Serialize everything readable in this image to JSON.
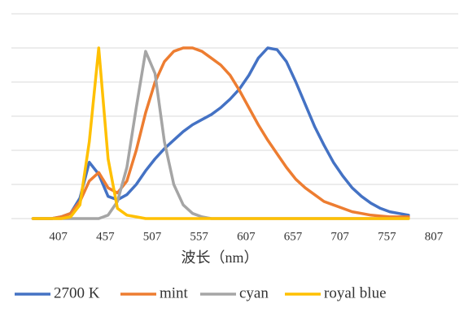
{
  "chart_data": {
    "type": "line",
    "x_label": "波长（nm）",
    "x": [
      380,
      390,
      400,
      410,
      420,
      430,
      440,
      450,
      460,
      470,
      480,
      490,
      500,
      510,
      520,
      530,
      540,
      550,
      560,
      570,
      580,
      590,
      600,
      610,
      620,
      630,
      640,
      650,
      660,
      670,
      680,
      690,
      700,
      710,
      720,
      730,
      740,
      750,
      760,
      770,
      780
    ],
    "series": [
      {
        "name": "2700 K",
        "color": "#4472c4",
        "values": [
          0,
          0,
          0,
          0.01,
          0.03,
          0.12,
          0.33,
          0.26,
          0.13,
          0.11,
          0.14,
          0.2,
          0.28,
          0.35,
          0.41,
          0.46,
          0.51,
          0.55,
          0.58,
          0.61,
          0.65,
          0.7,
          0.76,
          0.84,
          0.94,
          1.0,
          0.99,
          0.92,
          0.8,
          0.67,
          0.54,
          0.43,
          0.33,
          0.25,
          0.18,
          0.13,
          0.09,
          0.06,
          0.04,
          0.03,
          0.02
        ]
      },
      {
        "name": "mint",
        "color": "#ed7d31",
        "values": [
          0,
          0,
          0,
          0.01,
          0.03,
          0.1,
          0.22,
          0.27,
          0.18,
          0.15,
          0.22,
          0.4,
          0.62,
          0.8,
          0.92,
          0.98,
          1.0,
          1.0,
          0.98,
          0.94,
          0.9,
          0.84,
          0.75,
          0.65,
          0.55,
          0.46,
          0.38,
          0.3,
          0.23,
          0.18,
          0.14,
          0.1,
          0.08,
          0.06,
          0.04,
          0.03,
          0.02,
          0.015,
          0.01,
          0.01,
          0.01
        ]
      },
      {
        "name": "cyan",
        "color": "#a5a5a5",
        "values": [
          0,
          0,
          0,
          0,
          0,
          0,
          0,
          0,
          0.02,
          0.1,
          0.3,
          0.65,
          0.98,
          0.85,
          0.45,
          0.2,
          0.08,
          0.03,
          0.01,
          0,
          0,
          0,
          0,
          0,
          0,
          0,
          0,
          0,
          0,
          0,
          0,
          0,
          0,
          0,
          0,
          0,
          0,
          0,
          0,
          0,
          0
        ]
      },
      {
        "name": "royal blue",
        "color": "#ffc000",
        "values": [
          0,
          0,
          0,
          0,
          0.01,
          0.08,
          0.45,
          1.0,
          0.35,
          0.06,
          0.02,
          0.01,
          0,
          0,
          0,
          0,
          0,
          0,
          0,
          0,
          0,
          0,
          0,
          0,
          0,
          0,
          0,
          0,
          0,
          0,
          0,
          0,
          0,
          0,
          0,
          0,
          0,
          0,
          0,
          0,
          0
        ]
      }
    ],
    "xlim": [
      357,
      833
    ],
    "xticks": [
      407,
      457,
      507,
      557,
      607,
      657,
      707,
      757,
      807
    ],
    "ylim": [
      0,
      1.2
    ],
    "yticks": [
      0,
      0.2,
      0.4,
      0.6,
      0.8,
      1.0,
      1.2
    ],
    "grid": true,
    "legend": "bottom"
  }
}
